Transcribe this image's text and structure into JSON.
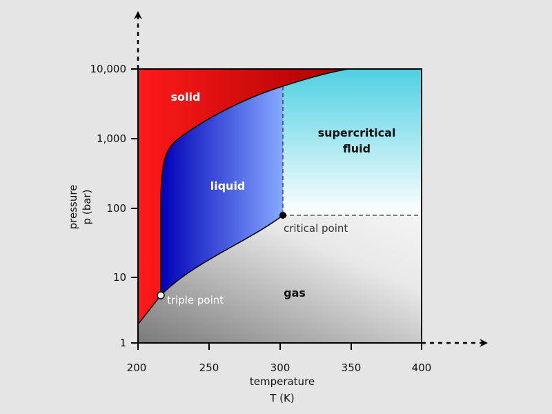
{
  "x_axis": {
    "title": "temperature",
    "unit": "T (K)",
    "ticks": [
      "200",
      "250",
      "300",
      "350",
      "400"
    ]
  },
  "y_axis": {
    "title": "pressure",
    "unit": "p (bar)",
    "ticks": [
      "1",
      "10",
      "100",
      "1,000",
      "10,000"
    ]
  },
  "regions": {
    "solid": "solid",
    "liquid": "liquid",
    "supercritical": [
      "supercritical",
      "fluid"
    ],
    "gas": "gas"
  },
  "points": {
    "critical": "critical point",
    "triple": "triple point"
  }
}
